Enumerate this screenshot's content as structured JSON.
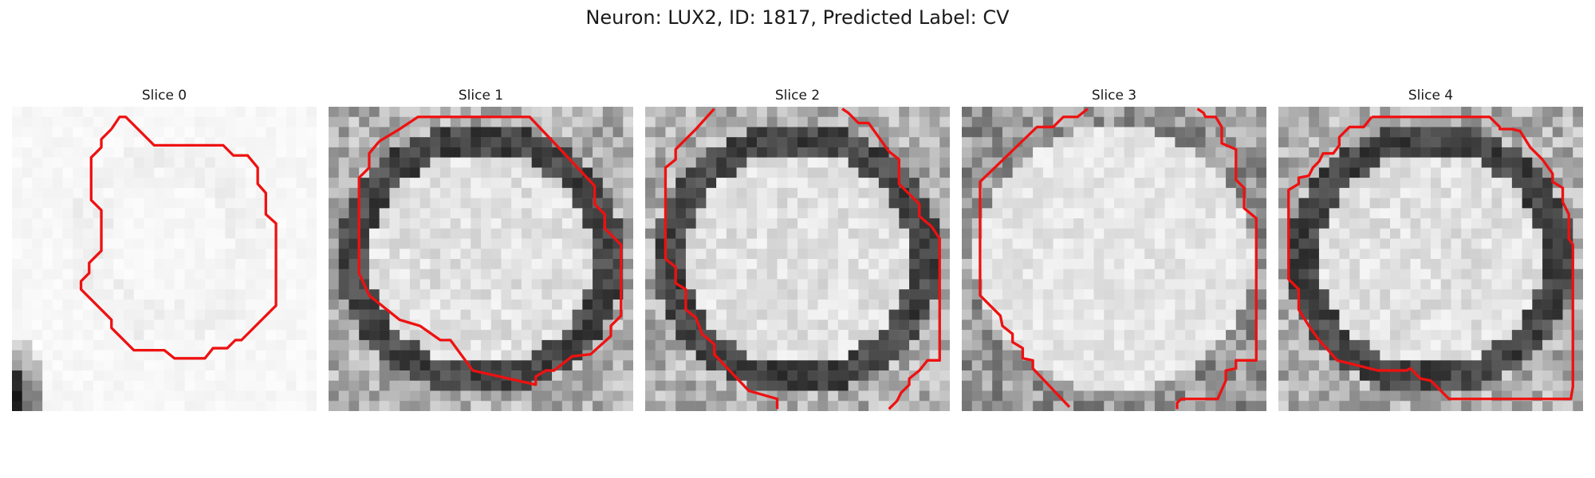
{
  "figure": {
    "title": "Neuron: LUX2, ID: 1817, Predicted Label: CV"
  },
  "panels": [
    {
      "title": "Slice 0",
      "tone": "pale",
      "contour": "slice0"
    },
    {
      "title": "Slice 1",
      "tone": "ring",
      "contour": "slice1"
    },
    {
      "title": "Slice 2",
      "tone": "ring",
      "contour": "slice2"
    },
    {
      "title": "Slice 3",
      "tone": "soft",
      "contour": "slice3"
    },
    {
      "title": "Slice 4",
      "tone": "ring",
      "contour": "slice4"
    }
  ],
  "colors": {
    "contour": "#ee1111",
    "background": "#ffffff"
  }
}
